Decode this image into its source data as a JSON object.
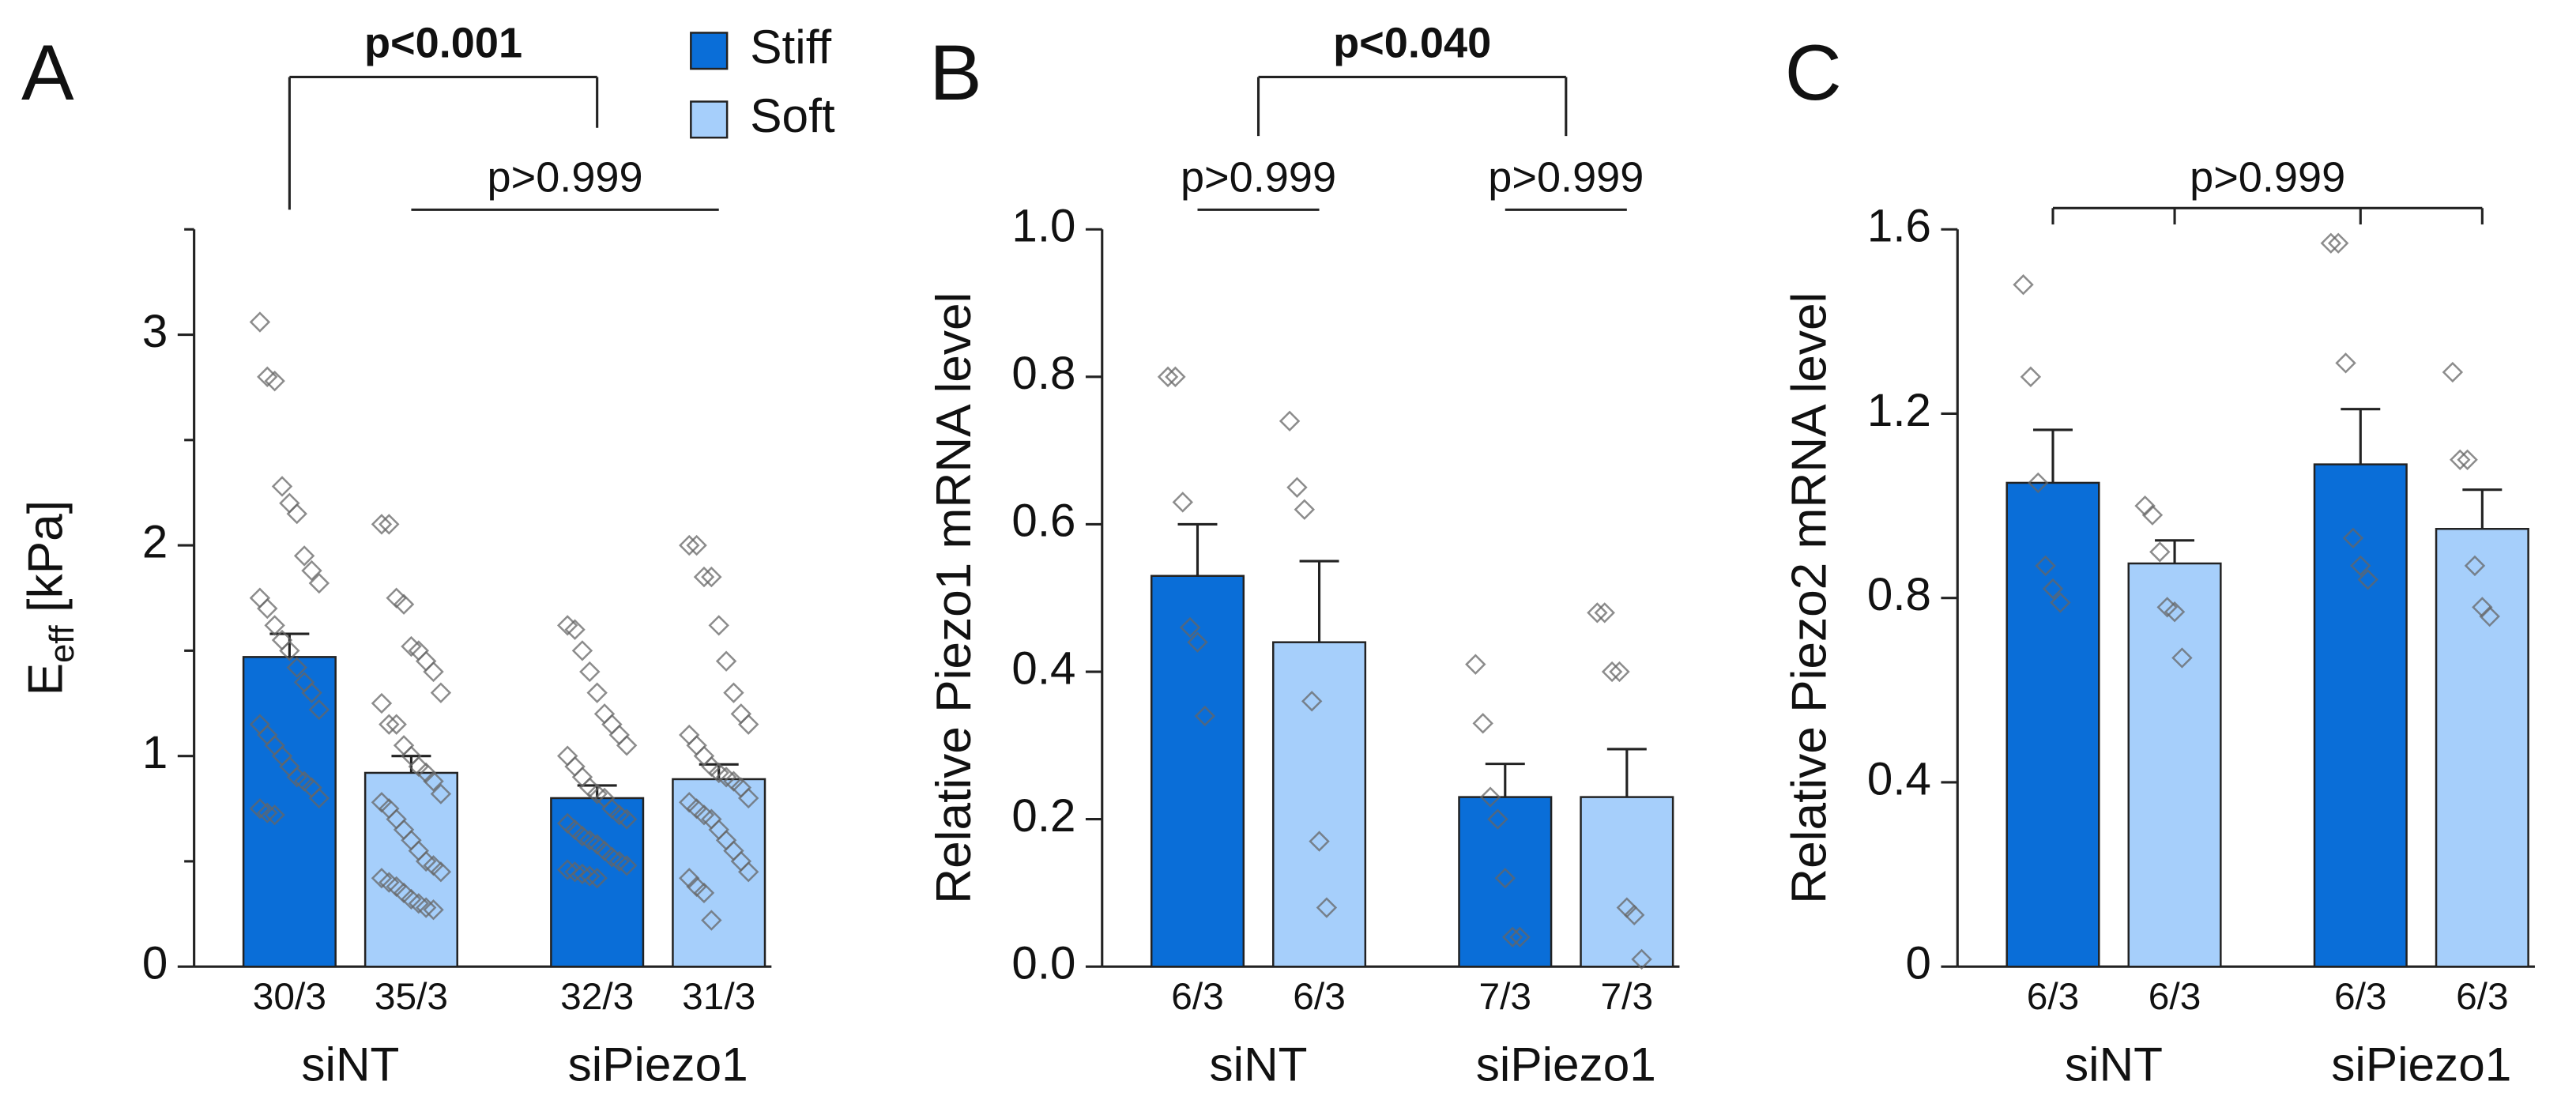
{
  "chart_data": [
    {
      "type": "bar",
      "panel": "A",
      "y_label": {
        "text": "E",
        "sub": "eff",
        "unit": "[kPa]"
      },
      "categories": [
        "siNT",
        "siPiezo1"
      ],
      "legend": true,
      "series": [
        {
          "name": "Stiff",
          "color": "#0a6ed8",
          "values": [
            1.47,
            0.8
          ],
          "errors": [
            0.11,
            0.06
          ],
          "n_labels": [
            "30/3",
            "32/3"
          ],
          "points": [
            [
              3.06,
              2.8,
              2.78,
              2.28,
              2.2,
              2.15,
              1.95,
              1.88,
              1.82,
              1.75,
              1.7,
              1.62,
              1.55,
              1.5,
              1.42,
              1.35,
              1.3,
              1.22,
              1.15,
              1.1,
              1.05,
              1.0,
              0.95,
              0.9,
              0.88,
              0.85,
              0.8,
              0.75,
              0.73,
              0.72
            ],
            [
              1.62,
              1.6,
              1.5,
              1.4,
              1.3,
              1.2,
              1.15,
              1.1,
              1.05,
              1.0,
              0.95,
              0.9,
              0.85,
              0.82,
              0.8,
              0.75,
              0.72,
              0.7,
              0.68,
              0.65,
              0.62,
              0.6,
              0.58,
              0.55,
              0.52,
              0.5,
              0.48,
              0.46,
              0.45,
              0.44,
              0.43,
              0.42
            ]
          ]
        },
        {
          "name": "Soft",
          "color": "#a6cffb",
          "values": [
            0.92,
            0.89
          ],
          "errors": [
            0.08,
            0.07
          ],
          "n_labels": [
            "35/3",
            "31/3"
          ],
          "points": [
            [
              2.1,
              2.1,
              1.75,
              1.72,
              1.52,
              1.5,
              1.45,
              1.4,
              1.3,
              1.25,
              1.15,
              1.15,
              1.05,
              1.0,
              0.95,
              0.92,
              0.88,
              0.82,
              0.78,
              0.75,
              0.7,
              0.65,
              0.6,
              0.55,
              0.5,
              0.48,
              0.45,
              0.42,
              0.4,
              0.38,
              0.35,
              0.32,
              0.3,
              0.28,
              0.27
            ],
            [
              2.0,
              2.0,
              1.85,
              1.85,
              1.62,
              1.45,
              1.3,
              1.2,
              1.15,
              1.1,
              1.05,
              1.0,
              0.95,
              0.92,
              0.9,
              0.88,
              0.85,
              0.8,
              0.78,
              0.75,
              0.72,
              0.7,
              0.65,
              0.6,
              0.55,
              0.5,
              0.45,
              0.42,
              0.38,
              0.35,
              0.22
            ]
          ]
        }
      ],
      "ylim": [
        0,
        3.5
      ],
      "yticks": [
        0,
        1,
        2,
        3
      ],
      "minor_yticks": [
        0.5,
        1.5,
        2.5,
        3.5
      ],
      "brackets": [
        {
          "label": "p<0.001",
          "bold": true,
          "between": [
            [
              "siNT",
              "Stiff"
            ],
            [
              "siPiezo1",
              "Stiff"
            ]
          ],
          "drops": true
        },
        {
          "label": "p>0.999",
          "bold": false,
          "between": [
            [
              "siNT",
              "Soft"
            ],
            [
              "siPiezo1",
              "Soft"
            ]
          ],
          "drops": false
        }
      ]
    },
    {
      "type": "bar",
      "panel": "B",
      "y_label": "Relative Piezo1 mRNA level",
      "categories": [
        "siNT",
        "siPiezo1"
      ],
      "series": [
        {
          "name": "Stiff",
          "color": "#0a6ed8",
          "values": [
            0.53,
            0.23
          ],
          "errors": [
            0.07,
            0.045
          ],
          "n_labels": [
            "6/3",
            "7/3"
          ],
          "points": [
            [
              0.8,
              0.8,
              0.63,
              0.46,
              0.44,
              0.34
            ],
            [
              0.41,
              0.33,
              0.23,
              0.2,
              0.12,
              0.04,
              0.04
            ]
          ]
        },
        {
          "name": "Soft",
          "color": "#a6cffb",
          "values": [
            0.44,
            0.23
          ],
          "errors": [
            0.11,
            0.065
          ],
          "n_labels": [
            "6/3",
            "7/3"
          ],
          "points": [
            [
              0.74,
              0.65,
              0.62,
              0.36,
              0.17,
              0.08
            ],
            [
              0.48,
              0.48,
              0.4,
              0.4,
              0.08,
              0.07,
              0.01
            ]
          ]
        }
      ],
      "ylim": [
        0,
        1.0
      ],
      "yticks": [
        {
          "value": 0,
          "label": "0.0"
        },
        0.2,
        0.4,
        0.6,
        0.8,
        {
          "value": 1.0,
          "label": "1.0"
        }
      ],
      "brackets": [
        {
          "label": "p<0.040",
          "bold": true,
          "between": [
            [
              "siNT"
            ],
            [
              "siPiezo1"
            ]
          ],
          "drops": true
        },
        {
          "label": "p>0.999",
          "bold": false,
          "between": [
            [
              "siNT",
              "Stiff"
            ],
            [
              "siNT",
              "Soft"
            ]
          ],
          "drops": false
        },
        {
          "label": "p>0.999",
          "bold": false,
          "between": [
            [
              "siPiezo1",
              "Stiff"
            ],
            [
              "siPiezo1",
              "Soft"
            ]
          ],
          "drops": false
        }
      ]
    },
    {
      "type": "bar",
      "panel": "C",
      "y_label": "Relative Piezo2 mRNA level",
      "categories": [
        "siNT",
        "siPiezo1"
      ],
      "series": [
        {
          "name": "Stiff",
          "color": "#0a6ed8",
          "values": [
            1.05,
            1.09
          ],
          "errors": [
            0.115,
            0.12
          ],
          "n_labels": [
            "6/3",
            "6/3"
          ],
          "points": [
            [
              1.48,
              1.28,
              1.05,
              0.87,
              0.82,
              0.79
            ],
            [
              1.57,
              1.57,
              1.31,
              0.93,
              0.87,
              0.84
            ]
          ]
        },
        {
          "name": "Soft",
          "color": "#a6cffb",
          "values": [
            0.875,
            0.95
          ],
          "errors": [
            0.05,
            0.085
          ],
          "n_labels": [
            "6/3",
            "6/3"
          ],
          "points": [
            [
              1.0,
              0.98,
              0.9,
              0.78,
              0.77,
              0.67
            ],
            [
              1.29,
              1.1,
              1.1,
              0.87,
              0.78,
              0.76
            ]
          ]
        }
      ],
      "ylim": [
        0,
        1.6
      ],
      "yticks": [
        0,
        0.4,
        0.8,
        1.2,
        1.6
      ],
      "brackets": [
        {
          "label": "p>0.999",
          "bold": false,
          "between": [
            [
              "siNT",
              "Stiff"
            ],
            [
              "siNT",
              "Soft"
            ],
            [
              "siPiezo1",
              "Stiff"
            ],
            [
              "siPiezo1",
              "Soft"
            ]
          ],
          "drops": true
        }
      ]
    }
  ]
}
